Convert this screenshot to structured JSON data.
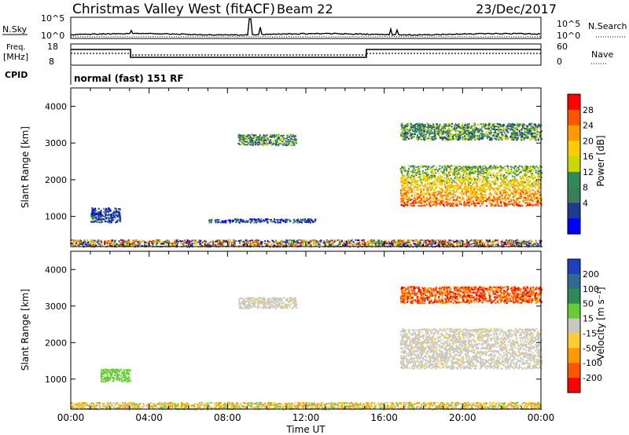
{
  "header": {
    "site": "Christmas Valley West (fitACF)",
    "beam": "Beam 22",
    "date": "23/Dec/2017"
  },
  "status_panels": {
    "nsky_label": "N.Sky",
    "nsearch_label": "N.Search",
    "noise_ticks": [
      "10^5",
      "10^0"
    ],
    "freq_label_line1": "Freq.",
    "freq_label_line2": "[MHz]",
    "freq_ticks": [
      "18",
      "8"
    ],
    "nave_label": "Nave",
    "nave_ticks": [
      "60",
      "0"
    ],
    "cpid_label": "CPID",
    "cpid_text": "normal (fast) 151 RF"
  },
  "chart_data": [
    {
      "type": "heatmap",
      "panel": "power",
      "ylabel": "Slant Range [km]",
      "xlabel": "Time UT",
      "x_ticks": [
        "00:00",
        "04:00",
        "08:00",
        "12:00",
        "16:00",
        "20:00",
        "00:00"
      ],
      "xlim_hours": [
        0,
        24
      ],
      "y_ticks": [
        1000,
        2000,
        3000,
        4000
      ],
      "ylim": [
        180,
        4500
      ],
      "colorbar": {
        "label": "Power [dB]",
        "ticks": [
          "28",
          "24",
          "20",
          "16",
          "12",
          "8",
          "4"
        ],
        "colors": [
          "#ff0000",
          "#ff5500",
          "#ff9900",
          "#ffcc00",
          "#c8d800",
          "#2e8b57",
          "#3a7d5a",
          "#1e3c8c",
          "#0000ff"
        ]
      },
      "regions": [
        {
          "t0": 0,
          "t1": 24,
          "r0": 190,
          "r1": 380,
          "level": "mixed"
        },
        {
          "t0": 1.0,
          "t1": 2.5,
          "r0": 850,
          "r1": 1250,
          "level": "low"
        },
        {
          "t0": 7.0,
          "t1": 12.5,
          "r0": 850,
          "r1": 950,
          "level": "low"
        },
        {
          "t0": 8.5,
          "t1": 11.5,
          "r0": 2950,
          "r1": 3250,
          "level": "mid"
        },
        {
          "t0": 16.8,
          "t1": 24,
          "r0": 1300,
          "r1": 2400,
          "level": "high"
        },
        {
          "t0": 16.8,
          "t1": 24,
          "r0": 3100,
          "r1": 3550,
          "level": "mid"
        }
      ]
    },
    {
      "type": "heatmap",
      "panel": "velocity",
      "ylabel": "Slant Range [km]",
      "xlabel": "Time UT",
      "x_ticks": [
        "00:00",
        "04:00",
        "08:00",
        "12:00",
        "16:00",
        "20:00",
        "00:00"
      ],
      "xlim_hours": [
        0,
        24
      ],
      "y_ticks": [
        1000,
        2000,
        3000,
        4000
      ],
      "ylim": [
        180,
        4500
      ],
      "colorbar": {
        "label": "Velocity [m s⁻¹]",
        "ticks": [
          "200",
          "100",
          "50",
          "15",
          "-15",
          "-50",
          "-100",
          "-200"
        ],
        "colors": [
          "#1f3fbf",
          "#2e6b8f",
          "#2e8b57",
          "#66cc33",
          "#c8c8c0",
          "#ffcc33",
          "#ff9900",
          "#ff5500",
          "#ff0000"
        ]
      },
      "regions": [
        {
          "t0": 0,
          "t1": 24,
          "r0": 190,
          "r1": 380,
          "level": "mixed"
        },
        {
          "t0": 1.5,
          "t1": 3.0,
          "r0": 950,
          "r1": 1300,
          "level": "positive"
        },
        {
          "t0": 8.5,
          "t1": 11.5,
          "r0": 2950,
          "r1": 3250,
          "level": "ground"
        },
        {
          "t0": 16.8,
          "t1": 24,
          "r0": 1300,
          "r1": 2400,
          "level": "ground"
        },
        {
          "t0": 16.8,
          "t1": 24,
          "r0": 3100,
          "r1": 3550,
          "level": "negative"
        }
      ]
    }
  ]
}
